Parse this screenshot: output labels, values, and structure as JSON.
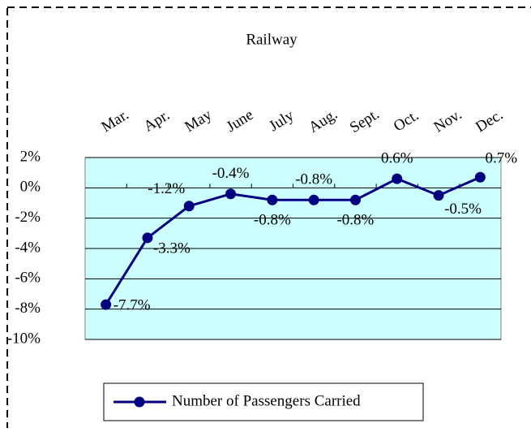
{
  "chart_data": {
    "type": "line",
    "title": "Railway",
    "categories": [
      "Mar.",
      "Apr.",
      "May",
      "June",
      "July",
      "Aug.",
      "Sept.",
      "Oct.",
      "Nov.",
      "Dec."
    ],
    "series": [
      {
        "name": "Number of Passengers Carried",
        "color": "#000080",
        "values": [
          -7.7,
          -3.3,
          -1.2,
          -0.4,
          -0.8,
          -0.8,
          -0.8,
          0.6,
          -0.5,
          0.7
        ],
        "value_labels": [
          "-7.7%",
          "-3.3%",
          "-1.2%",
          "-0.4%",
          "-0.8%",
          "-0.8%",
          "-0.8%",
          "0.6%",
          "-0.5%",
          "0.7%"
        ]
      }
    ],
    "ylim": [
      -10,
      2
    ],
    "yticks": [
      {
        "value": 2,
        "label": "2%"
      },
      {
        "value": 0,
        "label": "0%"
      },
      {
        "value": -2,
        "label": "-2%"
      },
      {
        "value": -4,
        "label": "-4%"
      },
      {
        "value": -6,
        "label": "-6%"
      },
      {
        "value": -8,
        "label": "-8%"
      },
      {
        "value": -10,
        "label": "-10%"
      }
    ],
    "grid": true,
    "plot_background": "#ccffff",
    "legend": "bottom"
  }
}
